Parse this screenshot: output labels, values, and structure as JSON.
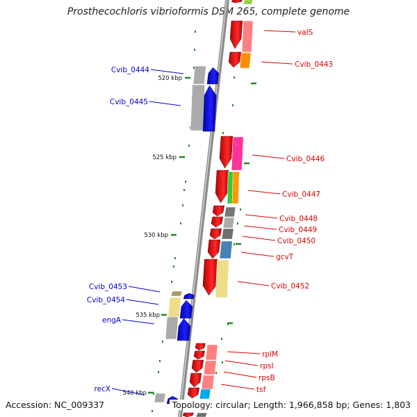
{
  "title": "Prosthecochloris vibrioformis DSM 265, complete genome",
  "footer": {
    "accession": "Accession: NC_009337",
    "topology": "Topology: circular; Length: 1,966,858 bp; Genes: 1,803"
  },
  "colors": {
    "red": "#dd0000",
    "blue": "#0000cc",
    "axis": "#8c8c8c",
    "tick": "#228822"
  },
  "scale_labels": [
    "520 kbp",
    "525 kbp",
    "530 kbp",
    "535 kbp",
    "540 kbp"
  ],
  "genes_right": [
    {
      "label": "valS",
      "color": "#ff8080"
    },
    {
      "label": "Cvib_0443",
      "color": "#ff8c00"
    },
    {
      "label": "Cvib_0446",
      "color": "#ff3399"
    },
    {
      "label": "Cvib_0447",
      "color": "#ff9900"
    },
    {
      "label": "Cvib_0448",
      "color": "#777777"
    },
    {
      "label": "Cvib_0449",
      "color": "#aaaaaa"
    },
    {
      "label": "Cvib_0450",
      "color": "#6e6e6e"
    },
    {
      "label": "gcvT",
      "color": "#4682b4"
    },
    {
      "label": "Cvib_0452",
      "color": "#eedd88"
    },
    {
      "label": "rplM",
      "color": "#ff8080"
    },
    {
      "label": "rpsI",
      "color": "#ff8080"
    },
    {
      "label": "rpsB",
      "color": "#ff8080"
    },
    {
      "label": "tsf",
      "color": "#00aaee"
    }
  ],
  "genes_left": [
    {
      "label": "Cvib_0444",
      "color": "#aaaaaa"
    },
    {
      "label": "Cvib_0445",
      "color": "#aaaaaa"
    },
    {
      "label": "Cvib_0453",
      "color": "#aa9966"
    },
    {
      "label": "Cvib_0454",
      "color": "#eedd88"
    },
    {
      "label": "engA",
      "color": "#aaaaaa"
    },
    {
      "label": "recX",
      "color": "#aaaaaa"
    }
  ]
}
